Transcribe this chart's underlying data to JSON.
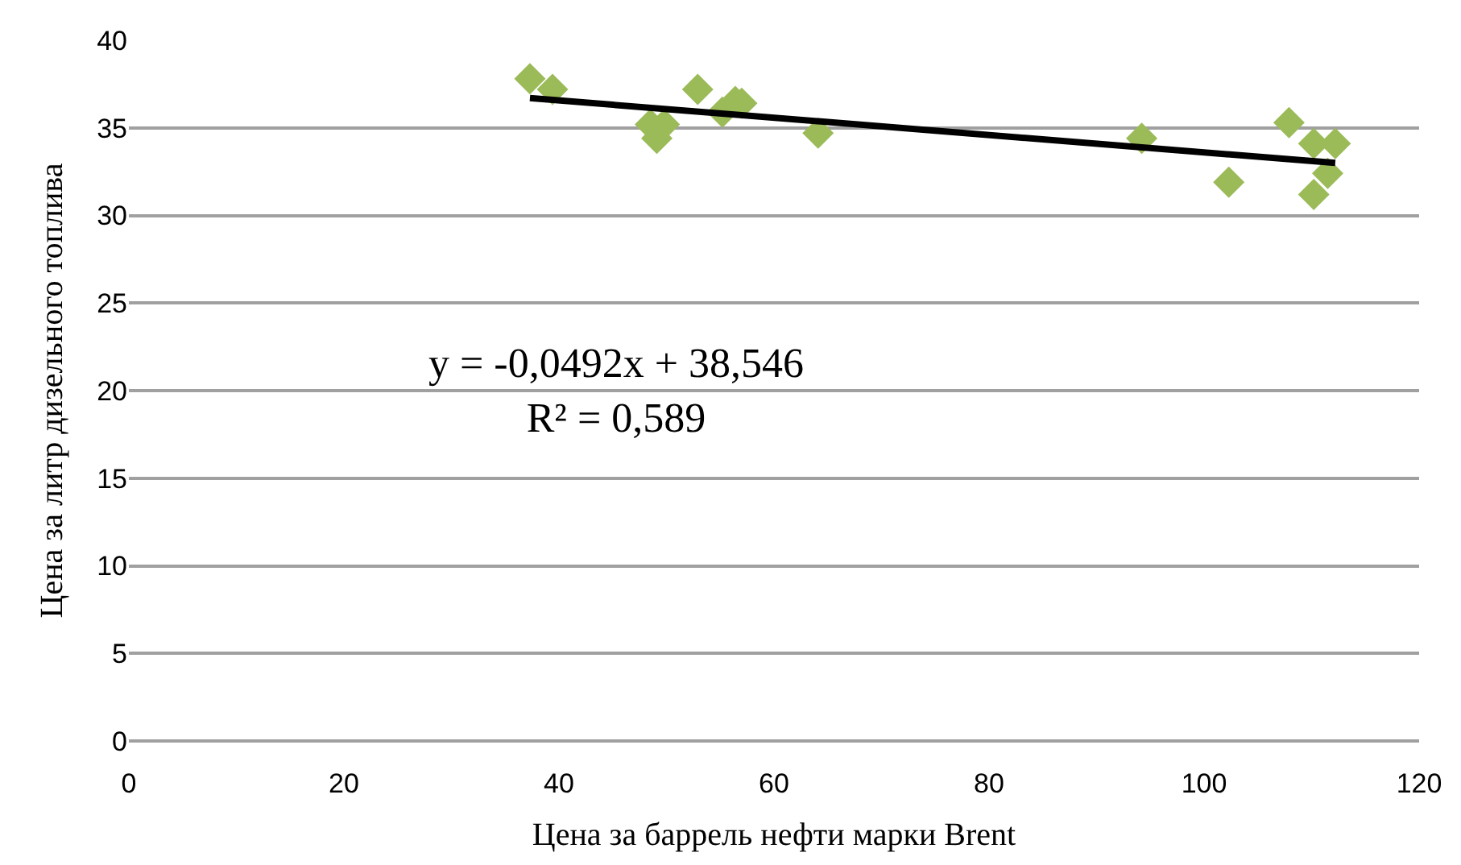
{
  "chart_data": {
    "type": "scatter",
    "xlabel": "Цена за баррель нефти марки Brent",
    "ylabel": "Цена за литр дизельного топлива",
    "xlim": [
      0,
      120
    ],
    "xticks": [
      0,
      20,
      40,
      60,
      80,
      100,
      120
    ],
    "ylim": [
      0,
      40
    ],
    "yticks": [
      0,
      5,
      10,
      15,
      20,
      25,
      30,
      35,
      40
    ],
    "grid": "y",
    "marker": "diamond",
    "legend": false,
    "series": [
      {
        "color": "#9bbb59",
        "x": [
          37.3,
          39.4,
          48.5,
          49.1,
          49.8,
          52.9,
          55.2,
          56.4,
          57.0,
          64.1,
          94.2,
          102.3,
          107.9,
          110.2,
          112.2,
          111.5,
          110.2
        ],
        "values": [
          37.8,
          37.2,
          35.2,
          34.4,
          35.2,
          37.2,
          35.9,
          36.5,
          36.4,
          34.7,
          34.4,
          31.9,
          35.3,
          34.1,
          34.1,
          32.4,
          31.2
        ]
      },
      {
        "type": "line",
        "color": "#000000",
        "marker": "none",
        "x": [
          37.3,
          112.2
        ],
        "values": [
          36.7,
          33.0
        ]
      }
    ],
    "annotations": [
      "y = -0,0492x + 38,546\nR² = 0,589"
    ]
  }
}
